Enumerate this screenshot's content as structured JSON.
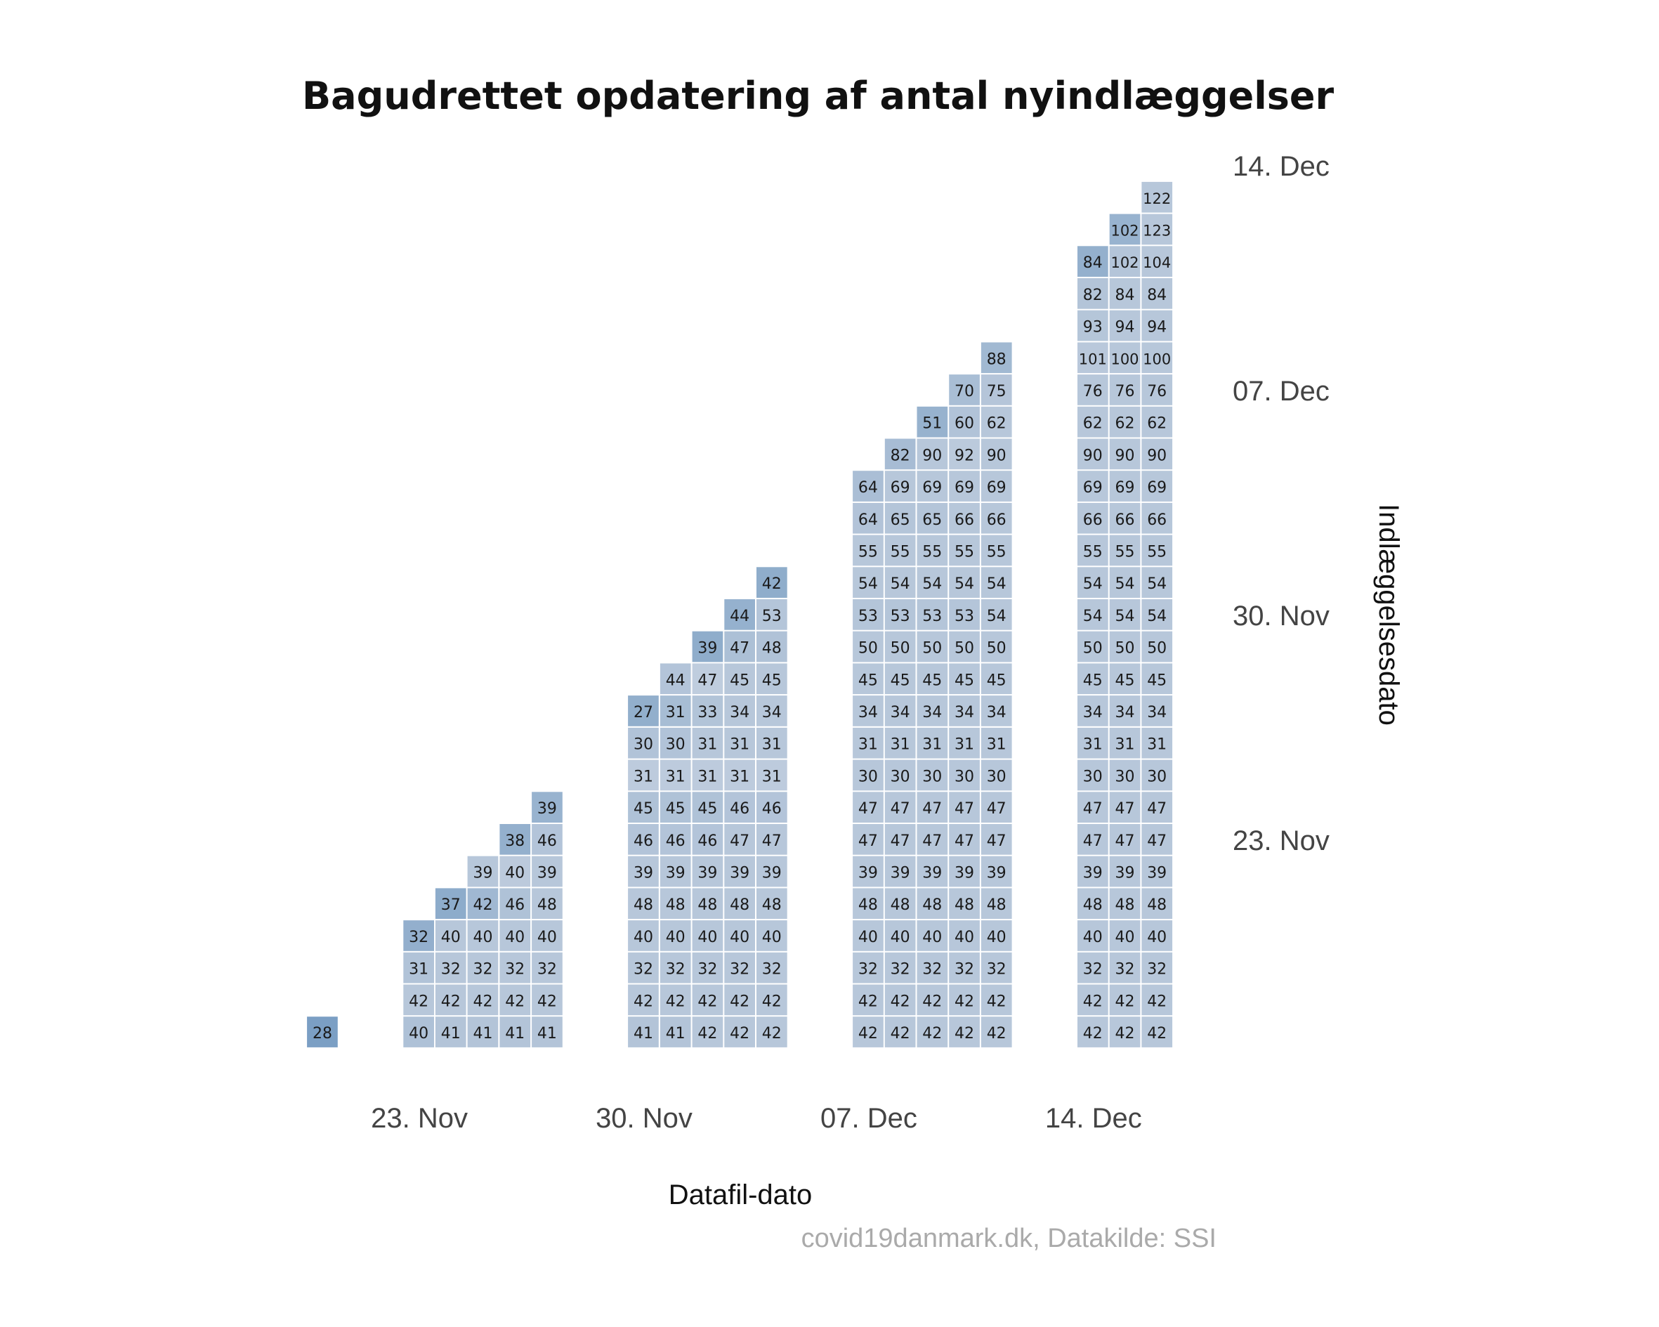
{
  "chart_data": {
    "type": "heatmap",
    "title": "Bagudrettet opdatering af antal nyindlæggelser",
    "xlabel": "Datafil-dato",
    "ylabel": "Indlæggelsesdato",
    "caption": "covid19danmark.dk, Datakilde: SSI",
    "x_tick_labels": [
      "23. Nov",
      "30. Nov",
      "07. Dec",
      "14. Dec"
    ],
    "y_tick_labels": [
      "23. Nov",
      "30. Nov",
      "07. Dec",
      "14. Dec"
    ],
    "x_range": [
      "2020-11-20",
      "2020-12-16"
    ],
    "y_range": [
      "2020-11-17",
      "2020-12-15"
    ],
    "grid": false,
    "legend": "none",
    "color_scale": {
      "light": "#e6e8ee",
      "mid": "#b7c7da",
      "dark": "#2f6ea8"
    },
    "columns": [
      {
        "file_date": "2020-11-20",
        "values": [
          28
        ]
      },
      {
        "file_date": "2020-11-23",
        "values": [
          40,
          42,
          31,
          32
        ]
      },
      {
        "file_date": "2020-11-24",
        "values": [
          41,
          42,
          32,
          40,
          37
        ]
      },
      {
        "file_date": "2020-11-25",
        "values": [
          41,
          42,
          32,
          40,
          42,
          39
        ]
      },
      {
        "file_date": "2020-11-26",
        "values": [
          41,
          42,
          32,
          40,
          46,
          40,
          38
        ]
      },
      {
        "file_date": "2020-11-27",
        "values": [
          41,
          42,
          32,
          40,
          48,
          39,
          46,
          39
        ]
      },
      {
        "file_date": "2020-11-30",
        "values": [
          41,
          42,
          32,
          40,
          48,
          39,
          46,
          45,
          31,
          30,
          27
        ]
      },
      {
        "file_date": "2020-12-01",
        "values": [
          41,
          42,
          32,
          40,
          48,
          39,
          46,
          45,
          31,
          30,
          31,
          44
        ]
      },
      {
        "file_date": "2020-12-02",
        "values": [
          42,
          42,
          32,
          40,
          48,
          39,
          46,
          45,
          31,
          31,
          33,
          47,
          39
        ]
      },
      {
        "file_date": "2020-12-03",
        "values": [
          42,
          42,
          32,
          40,
          48,
          39,
          47,
          46,
          31,
          31,
          34,
          45,
          47,
          44
        ]
      },
      {
        "file_date": "2020-12-04",
        "values": [
          42,
          42,
          32,
          40,
          48,
          39,
          47,
          46,
          31,
          31,
          34,
          45,
          48,
          53,
          42
        ]
      },
      {
        "file_date": "2020-12-07",
        "values": [
          42,
          42,
          32,
          40,
          48,
          39,
          47,
          47,
          30,
          31,
          34,
          45,
          50,
          53,
          54,
          55,
          64,
          64
        ]
      },
      {
        "file_date": "2020-12-08",
        "values": [
          42,
          42,
          32,
          40,
          48,
          39,
          47,
          47,
          30,
          31,
          34,
          45,
          50,
          53,
          54,
          55,
          65,
          69,
          82
        ]
      },
      {
        "file_date": "2020-12-09",
        "values": [
          42,
          42,
          32,
          40,
          48,
          39,
          47,
          47,
          30,
          31,
          34,
          45,
          50,
          53,
          54,
          55,
          65,
          69,
          90,
          51
        ]
      },
      {
        "file_date": "2020-12-10",
        "values": [
          42,
          42,
          32,
          40,
          48,
          39,
          47,
          47,
          30,
          31,
          34,
          45,
          50,
          53,
          54,
          55,
          66,
          69,
          92,
          60,
          70
        ]
      },
      {
        "file_date": "2020-12-11",
        "values": [
          42,
          42,
          32,
          40,
          48,
          39,
          47,
          47,
          30,
          31,
          34,
          45,
          50,
          54,
          54,
          55,
          66,
          69,
          90,
          62,
          75,
          88
        ]
      },
      {
        "file_date": "2020-12-14",
        "values": [
          42,
          42,
          32,
          40,
          48,
          39,
          47,
          47,
          30,
          31,
          34,
          45,
          50,
          54,
          54,
          55,
          66,
          69,
          90,
          62,
          76,
          101,
          93,
          82,
          84
        ]
      },
      {
        "file_date": "2020-12-15",
        "values": [
          42,
          42,
          32,
          40,
          48,
          39,
          47,
          47,
          30,
          31,
          34,
          45,
          50,
          54,
          54,
          55,
          66,
          69,
          90,
          62,
          76,
          100,
          94,
          84,
          102,
          102
        ]
      },
      {
        "file_date": "2020-12-16",
        "values": [
          42,
          42,
          32,
          40,
          48,
          39,
          47,
          47,
          30,
          31,
          34,
          45,
          50,
          54,
          54,
          55,
          66,
          69,
          90,
          62,
          76,
          100,
          94,
          84,
          104,
          123,
          122
        ]
      }
    ]
  }
}
